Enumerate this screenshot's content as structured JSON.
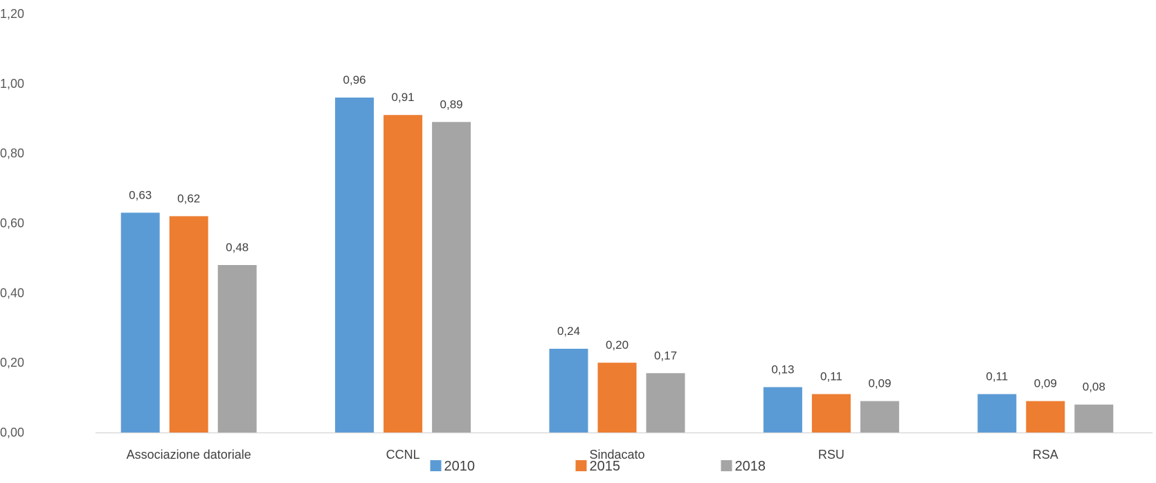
{
  "chart_data": {
    "type": "bar",
    "categories": [
      "Associazione datoriale",
      "CCNL",
      "Sindacato",
      "RSU",
      "RSA"
    ],
    "series": [
      {
        "name": "2010",
        "color": "#5B9BD5",
        "values": [
          0.63,
          0.96,
          0.24,
          0.13,
          0.11
        ],
        "labels": [
          "0,63",
          "0,96",
          "0,24",
          "0,13",
          "0,11"
        ]
      },
      {
        "name": "2015",
        "color": "#ED7D31",
        "values": [
          0.62,
          0.91,
          0.2,
          0.11,
          0.09
        ],
        "labels": [
          "0,62",
          "0,91",
          "0,20",
          "0,11",
          "0,09"
        ]
      },
      {
        "name": "2018",
        "color": "#A5A5A5",
        "values": [
          0.48,
          0.89,
          0.17,
          0.09,
          0.08
        ],
        "labels": [
          "0,48",
          "0,89",
          "0,17",
          "0,09",
          "0,08"
        ]
      }
    ],
    "y_ticks": [
      0,
      0.2,
      0.4,
      0.6,
      0.8,
      1.0,
      1.2
    ],
    "y_tick_labels": [
      "0,00",
      "0,20",
      "0,40",
      "0,60",
      "0,80",
      "1,00",
      "1,20"
    ],
    "ylim": [
      0,
      1.2
    ],
    "grid": false,
    "legend_position": "bottom"
  }
}
